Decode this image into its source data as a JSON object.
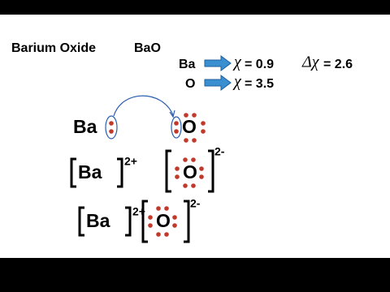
{
  "header": {
    "title": "Barium Oxide",
    "formula": "BaO"
  },
  "electronegativity": [
    {
      "element": "Ba",
      "symbol": "χ",
      "value": "= 0.9"
    },
    {
      "element": "O",
      "symbol": "χ",
      "value": "= 3.5"
    }
  ],
  "difference": {
    "symbol": "Δχ",
    "value": "= 2.6"
  },
  "transfer": {
    "donor": "Ba",
    "acceptor": "O"
  },
  "ions": [
    {
      "atom": "Ba",
      "charge": "2+"
    },
    {
      "atom": "O",
      "charge": "2-"
    }
  ],
  "compound": [
    {
      "atom": "Ba",
      "charge": "2+"
    },
    {
      "atom": "O",
      "charge": "2-"
    }
  ]
}
